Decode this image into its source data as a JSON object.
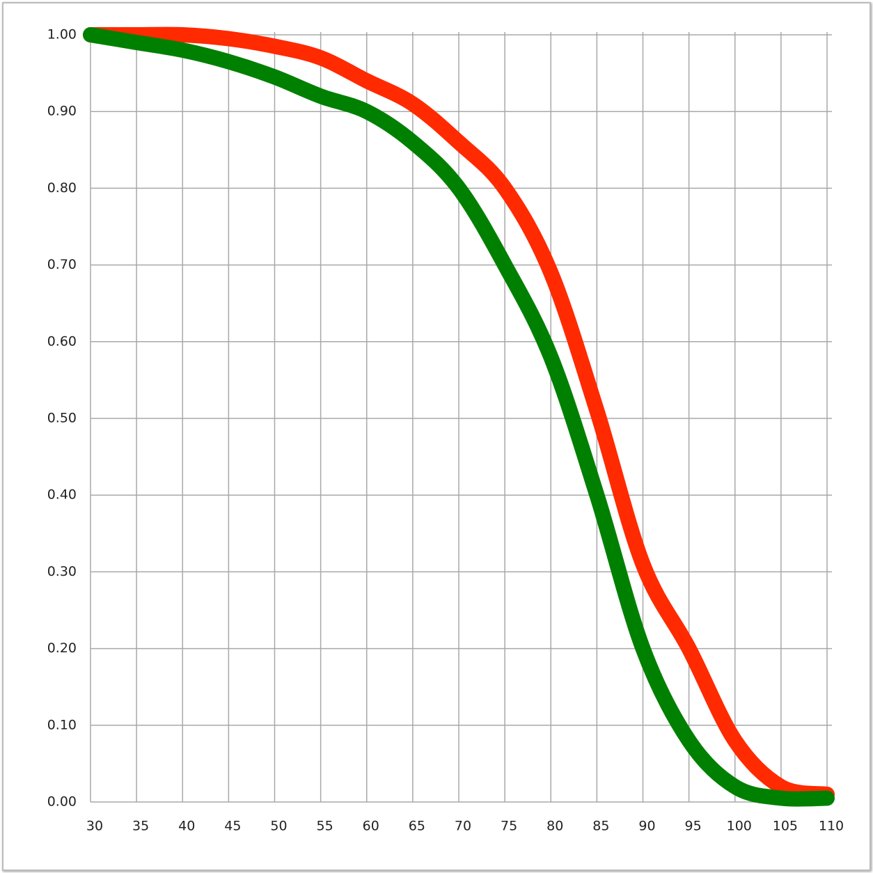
{
  "chart_data": {
    "type": "line",
    "x": [
      30,
      35,
      40,
      45,
      50,
      55,
      60,
      65,
      70,
      75,
      80,
      85,
      90,
      95,
      100,
      105,
      110
    ],
    "series": [
      {
        "color": "#ff2a00",
        "values": [
          1.0,
          1.0,
          1.0,
          0.995,
          0.985,
          0.97,
          0.94,
          0.91,
          0.86,
          0.8,
          0.69,
          0.51,
          0.31,
          0.2,
          0.08,
          0.02,
          0.01
        ]
      },
      {
        "color": "#008000",
        "values": [
          1.0,
          0.99,
          0.98,
          0.965,
          0.945,
          0.92,
          0.9,
          0.86,
          0.8,
          0.7,
          0.58,
          0.4,
          0.2,
          0.08,
          0.02,
          0.005,
          0.005
        ]
      }
    ],
    "xlim": [
      30,
      110
    ],
    "xticks": [
      30,
      35,
      40,
      45,
      50,
      55,
      60,
      65,
      70,
      75,
      80,
      85,
      90,
      95,
      100,
      105,
      110
    ],
    "ylim": [
      0,
      1
    ],
    "yticks": [
      {
        "value": 0,
        "label": "0.00"
      },
      {
        "value": 0.1,
        "label": "0.10"
      },
      {
        "value": 0.2,
        "label": "0.20"
      },
      {
        "value": 0.3,
        "label": "0.30"
      },
      {
        "value": 0.4,
        "label": "0.40"
      },
      {
        "value": 0.5,
        "label": "0.50"
      },
      {
        "value": 0.6,
        "label": "0.60"
      },
      {
        "value": 0.7,
        "label": "0.70"
      },
      {
        "value": 0.8,
        "label": "0.80"
      },
      {
        "value": 0.9,
        "label": "0.90"
      },
      {
        "value": 1,
        "label": "1.00"
      }
    ],
    "grid": true
  }
}
